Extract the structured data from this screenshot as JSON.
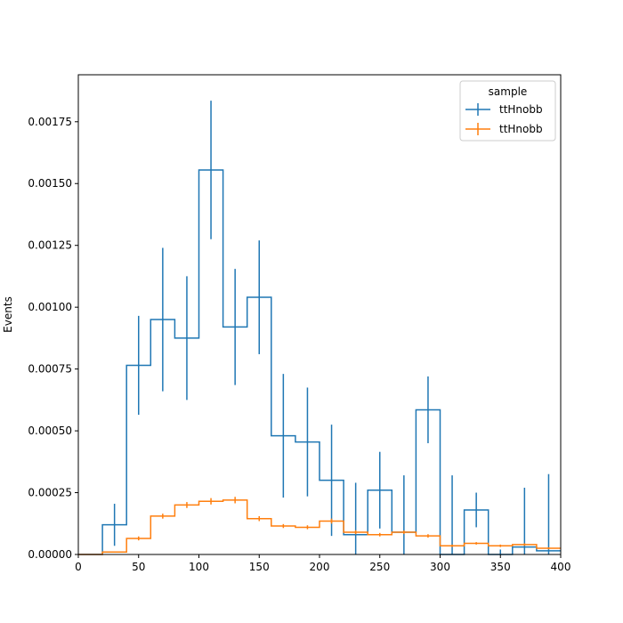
{
  "chart_data": {
    "type": "histogram-step",
    "xlabel": "",
    "ylabel": "Events",
    "xlim": [
      0,
      400
    ],
    "ylim": [
      0,
      0.00194
    ],
    "grid": false,
    "legend": {
      "title": "sample",
      "placement": "top-right"
    },
    "bin_edges": [
      0,
      20,
      40,
      60,
      80,
      100,
      120,
      140,
      160,
      180,
      200,
      220,
      240,
      260,
      280,
      300,
      320,
      340,
      360,
      380,
      400
    ],
    "series": [
      {
        "name": "ttHnobb",
        "color": "#1f77b4",
        "values": [
          0,
          0.00012,
          0.000765,
          0.00095,
          0.000875,
          0.001555,
          0.00092,
          0.00104,
          0.00048,
          0.000455,
          0.0003,
          8e-05,
          0.00026,
          9e-05,
          0.000585,
          0,
          0.00018,
          0,
          3e-05,
          1.5e-05
        ],
        "errors": [
          0,
          8.5e-05,
          0.0002,
          0.00029,
          0.00025,
          0.00028,
          0.000235,
          0.00023,
          0.00025,
          0.00022,
          0.000225,
          0.00021,
          0.000155,
          0.00023,
          0.000135,
          0.00032,
          7e-05,
          2e-05,
          0.00024,
          0.00031
        ]
      },
      {
        "name": "ttHnobb",
        "color": "#ff7f0e",
        "values": [
          0,
          1e-05,
          6.5e-05,
          0.000155,
          0.0002,
          0.000215,
          0.00022,
          0.000145,
          0.000115,
          0.00011,
          0.000135,
          9e-05,
          8e-05,
          9e-05,
          7.5e-05,
          3.5e-05,
          4.5e-05,
          3.5e-05,
          4e-05,
          2.5e-05
        ],
        "errors": [
          0,
          2e-06,
          8e-06,
          1e-05,
          1.2e-05,
          1.3e-05,
          1.3e-05,
          1e-05,
          8e-06,
          8e-06,
          1e-05,
          8e-06,
          7e-06,
          7e-06,
          7e-06,
          5e-06,
          5e-06,
          5e-06,
          5e-06,
          4e-06
        ]
      }
    ],
    "xticks": [
      {
        "value": 0,
        "label": "0"
      },
      {
        "value": 50,
        "label": "50"
      },
      {
        "value": 100,
        "label": "100"
      },
      {
        "value": 150,
        "label": "150"
      },
      {
        "value": 200,
        "label": "200"
      },
      {
        "value": 250,
        "label": "250"
      },
      {
        "value": 300,
        "label": "300"
      },
      {
        "value": 350,
        "label": "350"
      },
      {
        "value": 400,
        "label": "400"
      }
    ],
    "yticks": [
      {
        "value": 0,
        "label": "0.00000"
      },
      {
        "value": 0.00025,
        "label": "0.00025"
      },
      {
        "value": 0.0005,
        "label": "0.00050"
      },
      {
        "value": 0.00075,
        "label": "0.00075"
      },
      {
        "value": 0.001,
        "label": "0.00100"
      },
      {
        "value": 0.00125,
        "label": "0.00125"
      },
      {
        "value": 0.0015,
        "label": "0.00150"
      },
      {
        "value": 0.00175,
        "label": "0.00175"
      }
    ]
  }
}
